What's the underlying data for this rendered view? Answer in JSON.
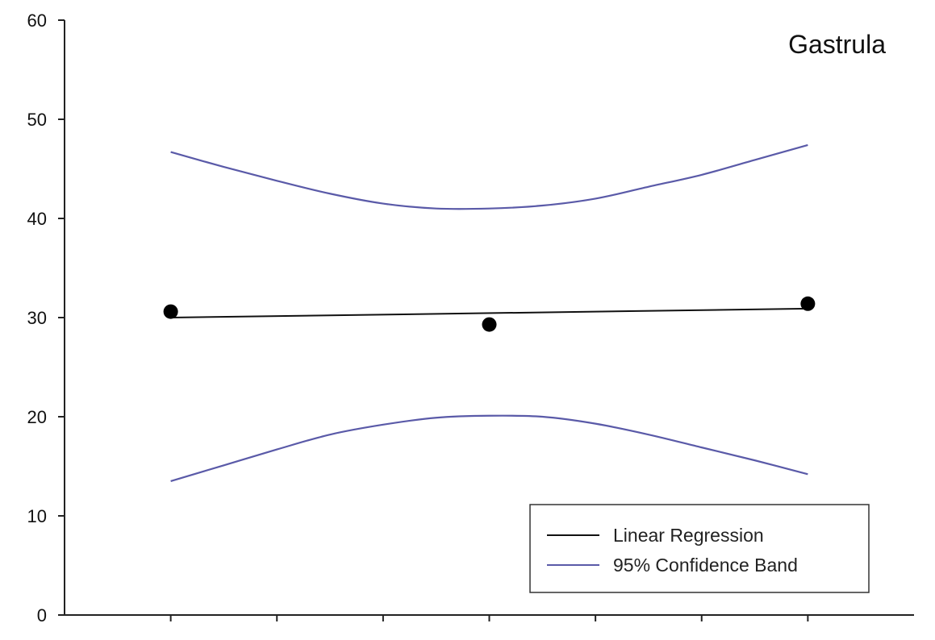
{
  "chart_data": {
    "type": "line",
    "title": "Gastrula",
    "xlabel": "",
    "ylabel": "",
    "ylim": [
      0,
      60
    ],
    "yticks": [
      0,
      10,
      20,
      30,
      40,
      50,
      60
    ],
    "xlim": [
      0,
      8
    ],
    "xticks": [
      1,
      2,
      3,
      4,
      5,
      6,
      7
    ],
    "grid": false,
    "legend_position": "bottom-right",
    "points": [
      {
        "x": 1,
        "y": 30.6
      },
      {
        "x": 4,
        "y": 29.3
      },
      {
        "x": 7,
        "y": 31.4
      }
    ],
    "series": [
      {
        "name": "Linear Regression",
        "color": "#111111",
        "x": [
          1,
          7
        ],
        "y": [
          30.0,
          30.9
        ]
      },
      {
        "name": "95% Confidence Band",
        "color": "#5a5aa8",
        "x": [
          1,
          1.5,
          2,
          2.5,
          3,
          3.5,
          4,
          4.5,
          5,
          5.5,
          6,
          6.5,
          7
        ],
        "y": [
          46.7,
          45.2,
          43.8,
          42.5,
          41.5,
          41.0,
          41.0,
          41.3,
          42.0,
          43.2,
          44.4,
          45.9,
          47.4
        ]
      },
      {
        "name": "95% Confidence Band",
        "color": "#5a5aa8",
        "x": [
          1,
          1.5,
          2,
          2.5,
          3,
          3.5,
          4,
          4.5,
          5,
          5.5,
          6,
          6.5,
          7
        ],
        "y": [
          13.5,
          15.1,
          16.7,
          18.2,
          19.2,
          19.9,
          20.1,
          20.0,
          19.3,
          18.2,
          16.9,
          15.6,
          14.2
        ]
      }
    ],
    "legend": [
      {
        "label": "Linear Regression",
        "color": "#111111"
      },
      {
        "label": "95% Confidence Band",
        "color": "#5a5aa8"
      }
    ]
  }
}
